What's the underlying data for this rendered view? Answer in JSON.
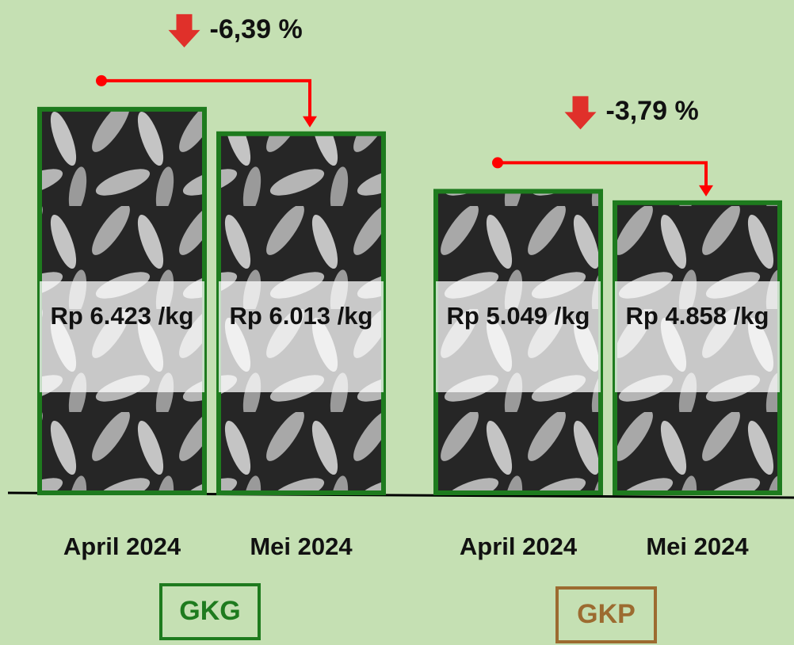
{
  "chart_data": {
    "type": "bar",
    "ylim": [
      0,
      8000
    ],
    "bar_color": "#1e7b1e",
    "groups": [
      {
        "name": "GKG",
        "color": "#1e7b1e",
        "categories": [
          "April 2024",
          "Mei 2024"
        ],
        "values": [
          6423,
          6013
        ],
        "value_labels": [
          "Rp 6.423 /kg",
          "Rp 6.013 /kg"
        ],
        "change": -6.39,
        "change_label": "-6,39 %"
      },
      {
        "name": "GKP",
        "color": "#9c6b30",
        "categories": [
          "April 2024",
          "Mei 2024"
        ],
        "values": [
          5049,
          4858
        ],
        "value_labels": [
          "Rp 5.049 /kg",
          "Rp 4.858 /kg"
        ],
        "change": -3.79,
        "change_label": "-3,79 %"
      }
    ]
  }
}
